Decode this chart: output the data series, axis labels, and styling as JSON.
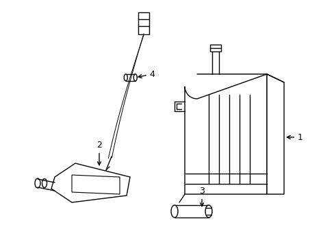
{
  "background_color": "#ffffff",
  "line_color": "#000000",
  "line_width": 1.0,
  "label_fontsize": 9,
  "figsize": [
    4.89,
    3.6
  ],
  "dpi": 100
}
